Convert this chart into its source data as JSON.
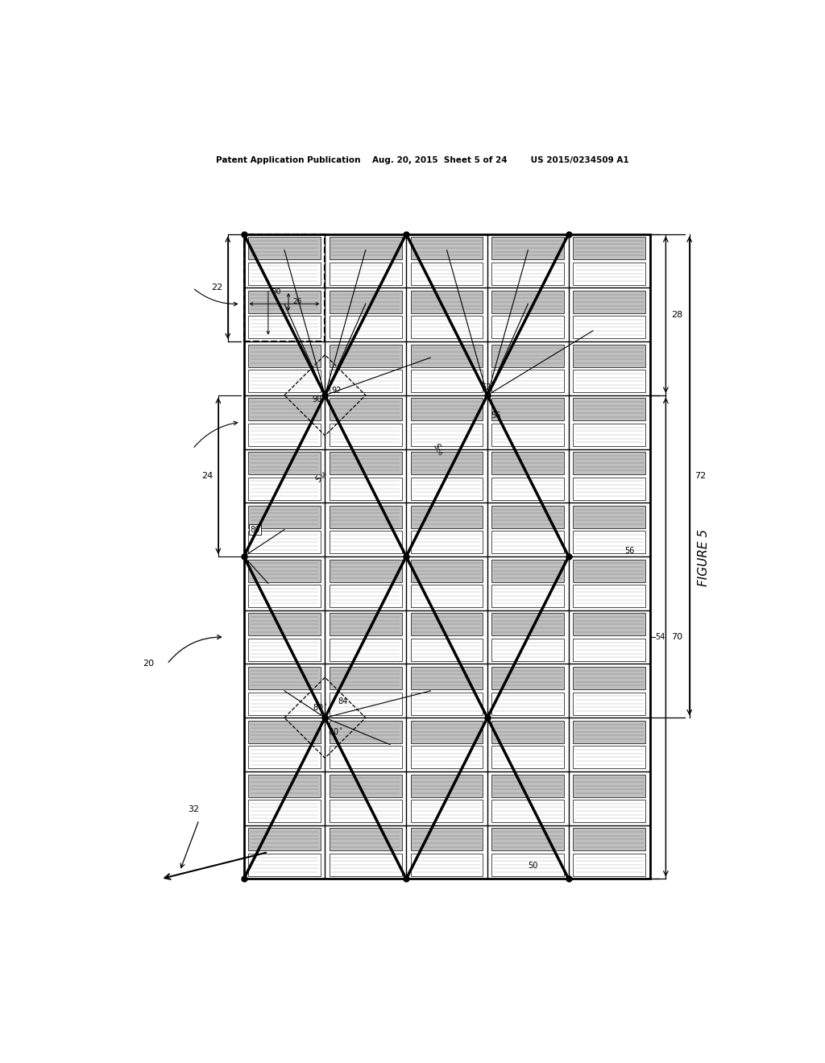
{
  "fig_width": 10.24,
  "fig_height": 13.2,
  "bg_color": "#ffffff",
  "GL": 0.22,
  "GR": 0.855,
  "GT": 0.87,
  "GB": 0.082,
  "COLS": 5,
  "ROWS": 12,
  "header": "Patent Application Publication    Aug. 20, 2015  Sheet 5 of 24        US 2015/0234509 A1"
}
